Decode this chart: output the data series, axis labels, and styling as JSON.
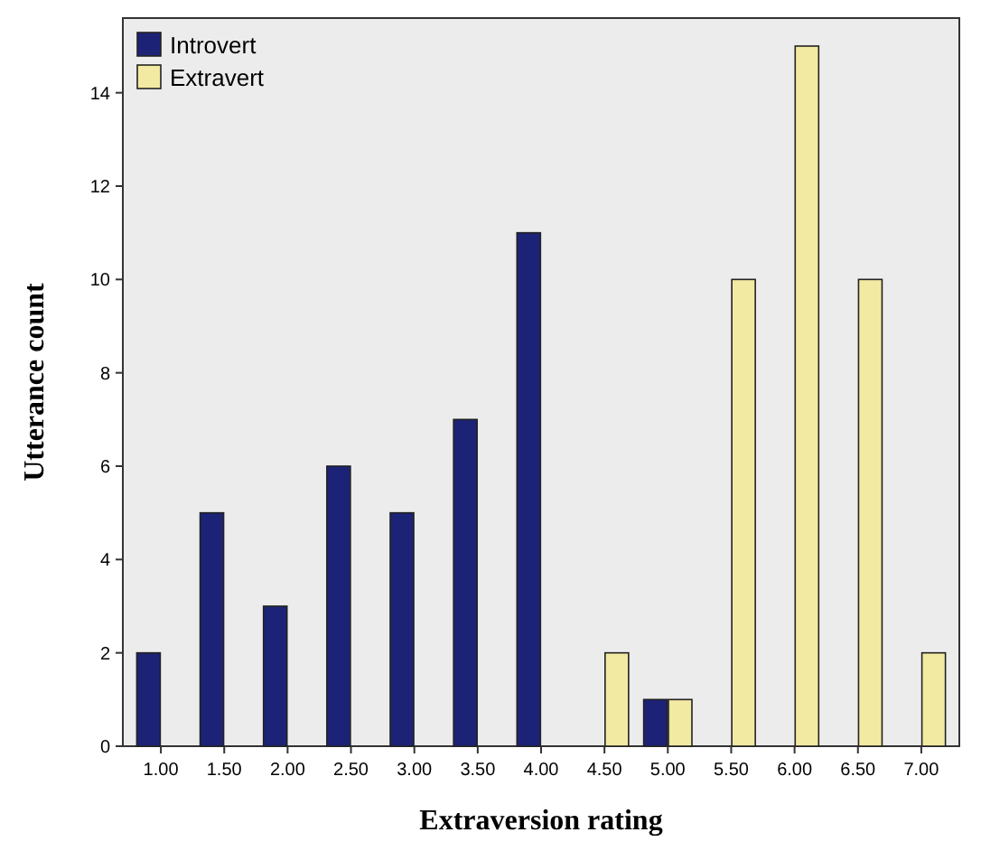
{
  "chart_data": {
    "type": "bar",
    "xlabel": "Extraversion rating",
    "ylabel": "Utterance count",
    "categories": [
      "1.00",
      "1.50",
      "2.00",
      "2.50",
      "3.00",
      "3.50",
      "4.00",
      "4.50",
      "5.00",
      "5.50",
      "6.00",
      "6.50",
      "7.00"
    ],
    "series": [
      {
        "name": "Introvert",
        "color": "#1c2377",
        "values": [
          2,
          5,
          3,
          6,
          5,
          7,
          11,
          null,
          1,
          null,
          null,
          null,
          null
        ]
      },
      {
        "name": "Extravert",
        "color": "#f2eaa2",
        "values": [
          null,
          null,
          null,
          null,
          null,
          null,
          null,
          2,
          1,
          10,
          15,
          10,
          2
        ]
      }
    ],
    "ylim": [
      0,
      15.6
    ],
    "yticks": [
      0,
      2,
      4,
      6,
      8,
      10,
      12,
      14
    ],
    "grid": false,
    "legend": "top left"
  }
}
